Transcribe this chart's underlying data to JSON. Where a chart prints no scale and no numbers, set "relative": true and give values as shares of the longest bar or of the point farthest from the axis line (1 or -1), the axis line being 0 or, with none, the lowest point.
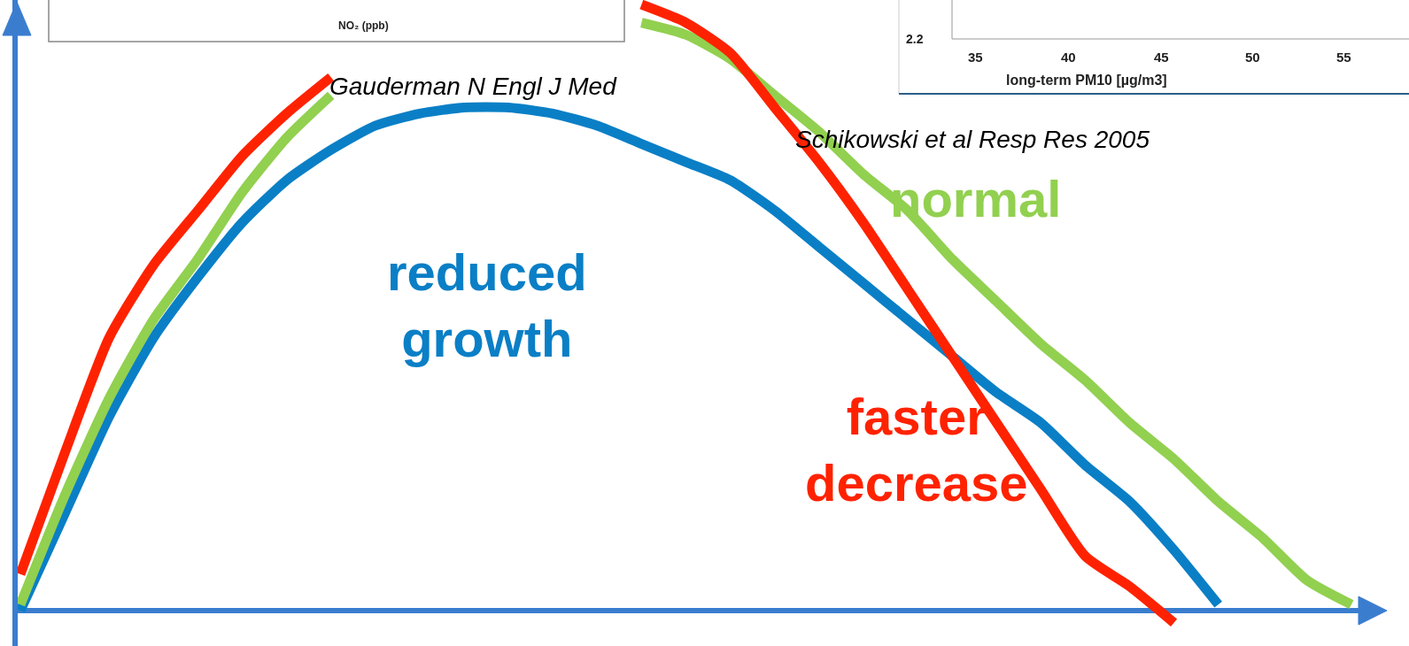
{
  "chart_data": {
    "type": "line",
    "relative": true,
    "legend": false,
    "line_style": "solid",
    "categories": [
      null,
      null,
      null,
      null,
      null,
      null,
      null,
      null,
      null,
      null,
      null,
      null,
      null,
      null,
      null,
      null,
      null,
      null,
      null,
      null,
      null,
      null,
      null,
      null,
      null,
      null,
      null,
      null,
      null,
      null,
      null
    ],
    "series": [
      {
        "name": "reduced growth",
        "color": "#0a7fc6",
        "values": [
          0.0,
          0.16,
          0.32,
          0.45,
          0.55,
          0.64,
          0.71,
          0.76,
          0.8,
          0.82,
          0.83,
          0.83,
          0.82,
          0.8,
          0.77,
          0.74,
          0.71,
          0.66,
          0.6,
          0.54,
          0.48,
          0.42,
          0.36,
          0.31,
          0.24,
          0.18,
          0.1,
          0.01,
          null,
          null,
          null
        ]
      },
      {
        "name": "normal",
        "color": "#92d050",
        "values": [
          0.01,
          0.19,
          0.35,
          0.48,
          0.58,
          0.69,
          0.78,
          0.85,
          null,
          null,
          null,
          null,
          null,
          null,
          0.97,
          0.95,
          0.91,
          0.85,
          0.79,
          0.72,
          0.66,
          0.58,
          0.51,
          0.44,
          0.38,
          0.31,
          0.25,
          0.18,
          0.12,
          0.05,
          0.01
        ]
      },
      {
        "name": "faster decrease",
        "color": "#ff2200",
        "values": [
          0.06,
          0.26,
          0.45,
          0.57,
          0.66,
          0.75,
          0.82,
          0.88,
          null,
          null,
          null,
          null,
          null,
          null,
          1.0,
          0.97,
          0.92,
          0.83,
          0.74,
          0.64,
          0.53,
          0.42,
          0.31,
          0.2,
          0.09,
          0.04,
          -0.02,
          null,
          null,
          null,
          null
        ]
      }
    ],
    "ref_lines": [
      {
        "axis": "y",
        "value": 0,
        "color": "#3a7dcf"
      }
    ],
    "annotations": [
      "Gauderman N Engl J Med",
      "Schikowski et al Resp Res 2005",
      "NO₂ (ppb)",
      "2.2",
      "35",
      "40",
      "45",
      "50",
      "55",
      "long-term PM10 [µg/m3]"
    ]
  }
}
